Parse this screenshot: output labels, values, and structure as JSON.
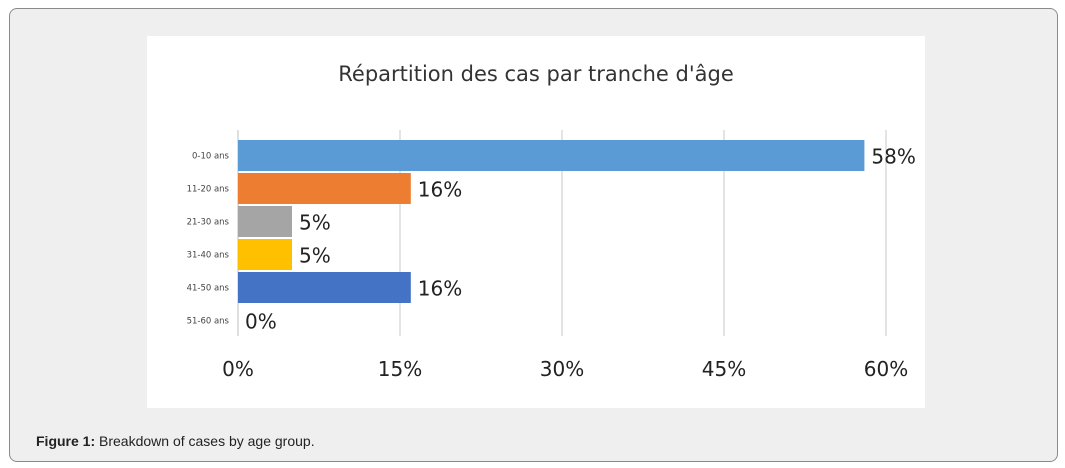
{
  "chart_data": {
    "type": "bar",
    "orientation": "horizontal",
    "title": "Répartition des cas par tranche d'âge",
    "categories": [
      "0-10 ans",
      "11-20 ans",
      "21-30 ans",
      "31-40 ans",
      "41-50 ans",
      "51-60 ans"
    ],
    "values": [
      58,
      16,
      5,
      5,
      16,
      0
    ],
    "data_labels": [
      "58%",
      "16%",
      "5%",
      "5%",
      "16%",
      "0%"
    ],
    "colors": [
      "#5b9bd5",
      "#ed7d31",
      "#a5a5a5",
      "#ffc000",
      "#4472c4",
      "#70ad47"
    ],
    "xlim": [
      0,
      60
    ],
    "xticks": [
      0,
      15,
      30,
      45,
      60
    ],
    "xtick_labels": [
      "0%",
      "15%",
      "30%",
      "45%",
      "60%"
    ],
    "xlabel": "",
    "ylabel": "",
    "grid": true,
    "legend": "none"
  },
  "caption": {
    "label": "Figure 1:",
    "text": " Breakdown of cases by age group."
  }
}
